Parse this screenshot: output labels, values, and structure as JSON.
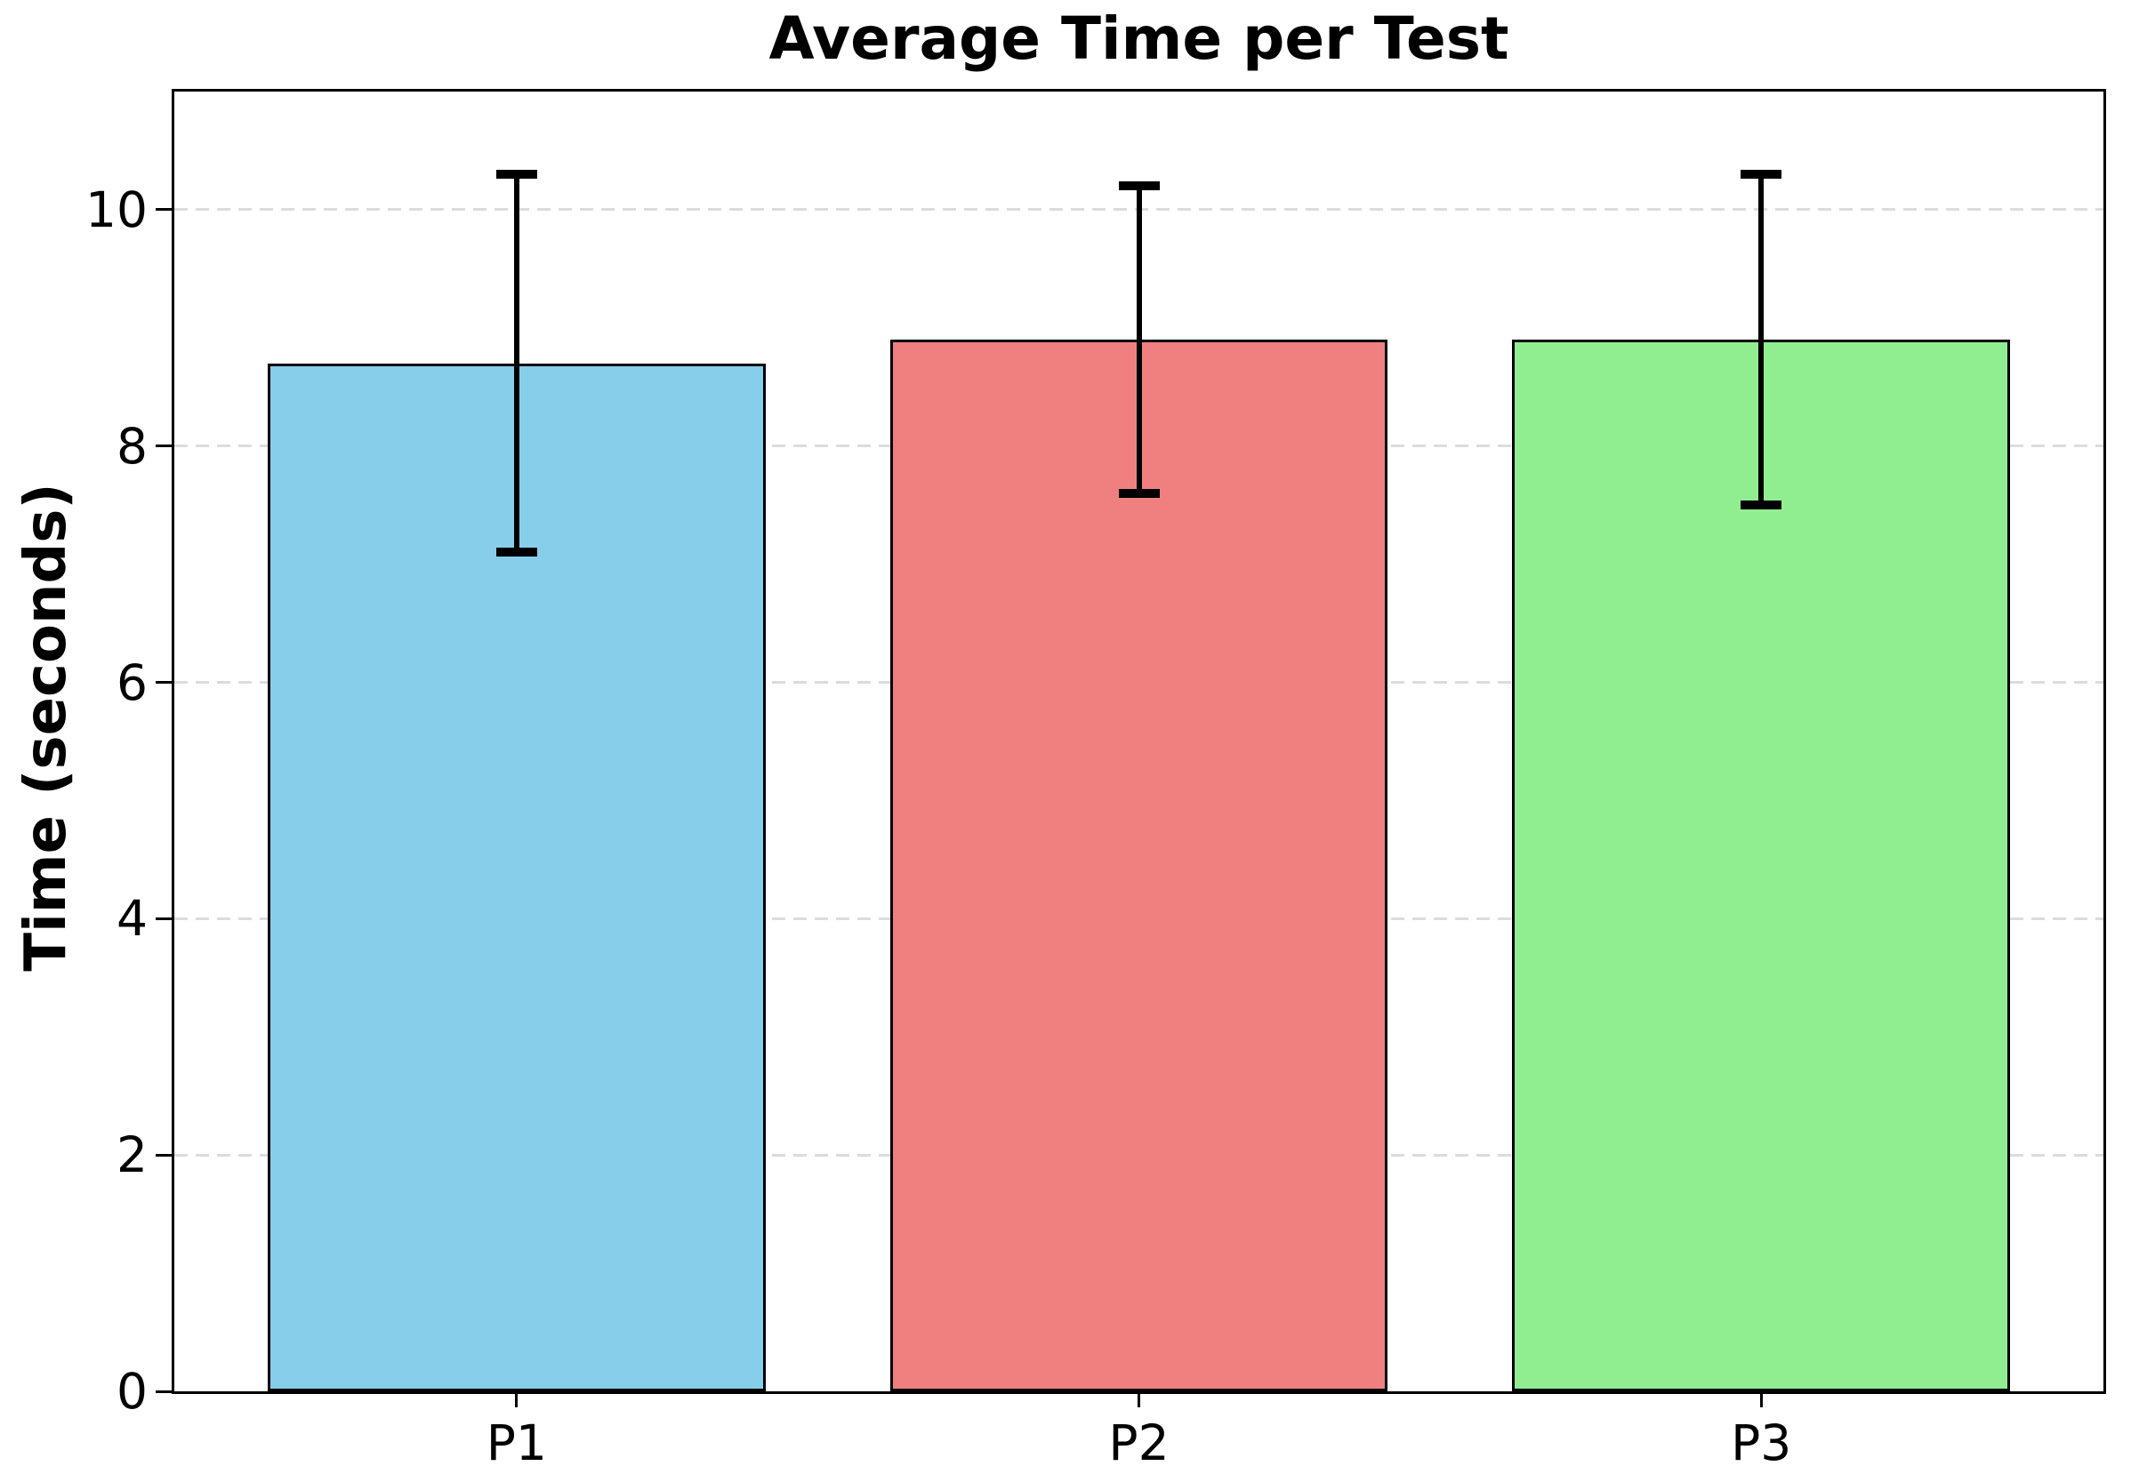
{
  "chart_data": {
    "type": "bar",
    "title": "Average Time per Test",
    "xlabel": "",
    "ylabel": "Time (seconds)",
    "categories": [
      "P1",
      "P2",
      "P3"
    ],
    "values": [
      8.7,
      8.9,
      8.9
    ],
    "error_bars": [
      1.6,
      1.3,
      1.4
    ],
    "error_bar_ranges": [
      [
        7.1,
        10.3
      ],
      [
        7.6,
        10.2
      ],
      [
        7.5,
        10.3
      ]
    ],
    "bar_colors": [
      "#87CEEB",
      "#F08080",
      "#90EE90"
    ],
    "bar_edge_color": "#000000",
    "error_bar_color": "#000000",
    "yticks": [
      0,
      2,
      4,
      6,
      8,
      10
    ],
    "ylim": [
      0,
      11
    ],
    "xlim": [
      -0.55,
      2.55
    ],
    "bar_width": 0.8,
    "grid": "horizontal-dashed",
    "grid_color": "#dcdcdc",
    "legend": "none",
    "background_color": "#ffffff"
  }
}
